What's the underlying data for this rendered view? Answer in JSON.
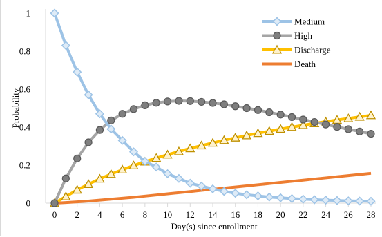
{
  "chart_data": {
    "type": "line",
    "title": "",
    "xlabel": "Day(s) since enrollment",
    "ylabel": "Probability",
    "xlim": [
      0,
      28
    ],
    "ylim": [
      0,
      1
    ],
    "x_ticks": [
      0,
      2,
      4,
      6,
      8,
      10,
      12,
      14,
      16,
      18,
      20,
      22,
      24,
      26,
      28
    ],
    "y_ticks": [
      0,
      0.2,
      0.4,
      0.6,
      0.8,
      1
    ],
    "y_tick_labels": [
      "0",
      "0.2",
      "0.4",
      "0.6",
      "0.8",
      "1"
    ],
    "grid": "horizontal-none",
    "legend_position": "top-right",
    "x": [
      0,
      1,
      2,
      3,
      4,
      5,
      6,
      7,
      8,
      9,
      10,
      11,
      12,
      13,
      14,
      15,
      16,
      17,
      18,
      19,
      20,
      21,
      22,
      23,
      24,
      25,
      26,
      27,
      28
    ],
    "series": [
      {
        "name": "Medium",
        "color": "#9dc3e6",
        "marker": "diamond",
        "values": [
          1.0,
          0.83,
          0.69,
          0.57,
          0.47,
          0.39,
          0.33,
          0.27,
          0.22,
          0.19,
          0.155,
          0.13,
          0.105,
          0.09,
          0.075,
          0.062,
          0.052,
          0.044,
          0.038,
          0.032,
          0.028,
          0.024,
          0.021,
          0.018,
          0.016,
          0.014,
          0.012,
          0.011,
          0.01
        ]
      },
      {
        "name": "High",
        "color": "#a5a5a5",
        "marker": "circle",
        "values": [
          0.0,
          0.13,
          0.235,
          0.32,
          0.385,
          0.435,
          0.47,
          0.495,
          0.515,
          0.528,
          0.535,
          0.538,
          0.537,
          0.533,
          0.527,
          0.52,
          0.51,
          0.5,
          0.49,
          0.478,
          0.466,
          0.453,
          0.44,
          0.427,
          0.414,
          0.401,
          0.389,
          0.377,
          0.365
        ]
      },
      {
        "name": "Discharge",
        "color": "#ffc000",
        "marker": "triangle",
        "values": [
          0.0,
          0.035,
          0.07,
          0.1,
          0.128,
          0.153,
          0.176,
          0.198,
          0.218,
          0.237,
          0.255,
          0.272,
          0.288,
          0.303,
          0.317,
          0.331,
          0.344,
          0.356,
          0.368,
          0.379,
          0.39,
          0.4,
          0.41,
          0.42,
          0.429,
          0.438,
          0.446,
          0.454,
          0.462
        ]
      },
      {
        "name": "Death",
        "color": "#ed7d31",
        "marker": "none",
        "values": [
          0.0,
          0.003,
          0.007,
          0.011,
          0.016,
          0.021,
          0.026,
          0.031,
          0.037,
          0.043,
          0.049,
          0.055,
          0.061,
          0.067,
          0.073,
          0.079,
          0.085,
          0.091,
          0.097,
          0.103,
          0.109,
          0.115,
          0.121,
          0.127,
          0.133,
          0.139,
          0.145,
          0.151,
          0.157
        ]
      }
    ]
  }
}
